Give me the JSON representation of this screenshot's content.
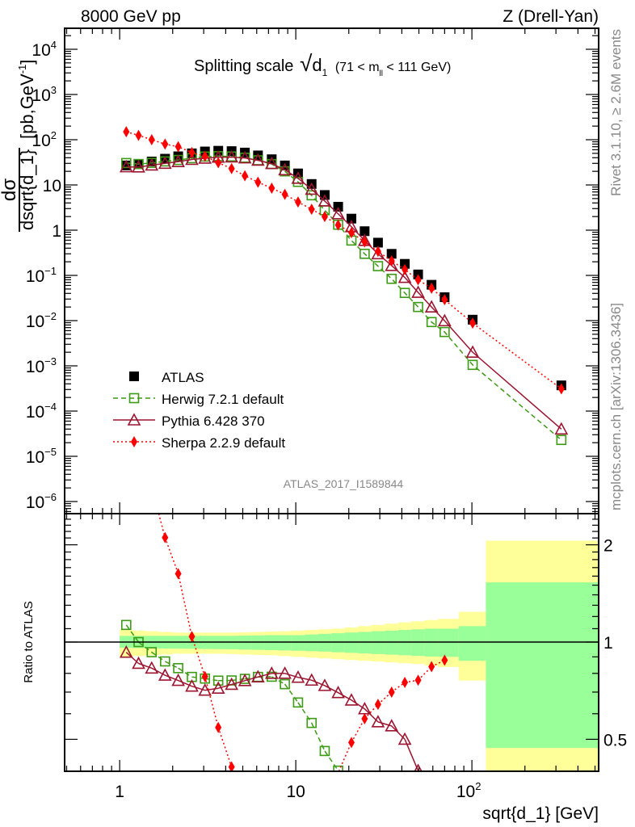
{
  "header": {
    "left": "8000 GeV pp",
    "right": "Z (Drell-Yan)"
  },
  "plot_title": {
    "main": "Splitting scale",
    "sqrt": "√",
    "var": "d",
    "var_sub": "1",
    "range_pre": "(71 < m",
    "range_sub": "ll",
    "range_post": " < 111 GeV)"
  },
  "ylabel": {
    "num": "dσ",
    "den": "dsqrt{d_1}",
    "units_pre": "[pb,GeV",
    "units_sup": "-1",
    "units_post": "]"
  },
  "ratio_ylabel": "Ratio to ATLAS",
  "xlabel": "sqrt{d_1} [GeV]",
  "side_text": {
    "rivet": "Rivet 3.1.10, ≥ 2.6M events",
    "mcplots": "mcplots.cern.ch [arXiv:1306.3436]"
  },
  "watermark": "ATLAS_2017_I1589844",
  "colors": {
    "atlas": "#000000",
    "herwig": "#3c9a14",
    "pythia": "#9b1430",
    "sherpa": "#ff0000",
    "band_inner": "#99ff99",
    "band_outer": "#ffff99"
  },
  "chart_data": {
    "type": "scatter",
    "title": "Splitting scale sqrt(d_1) (71 < m_ll < 111 GeV)",
    "xlabel": "sqrt{d_1} [GeV]",
    "ylabel": "dσ/dsqrt{d_1} [pb,GeV^-1]",
    "xscale": "log",
    "yscale": "log",
    "xlim": [
      0.49,
      520
    ],
    "ylim": [
      5e-07,
      30000
    ],
    "ratio_ylim": [
      0.4,
      2.5
    ],
    "x_ticks": [
      {
        "v": 1,
        "b": "1",
        "e": ""
      },
      {
        "v": 10,
        "b": "10",
        "e": ""
      },
      {
        "v": 100,
        "b": "10",
        "e": "2"
      }
    ],
    "y_ticks": [
      {
        "v": 10000,
        "b": "10",
        "e": "4"
      },
      {
        "v": 1000,
        "b": "10",
        "e": "3"
      },
      {
        "v": 100,
        "b": "10",
        "e": "2"
      },
      {
        "v": 10,
        "b": "10",
        "e": ""
      },
      {
        "v": 1,
        "b": "1",
        "e": ""
      },
      {
        "v": 0.1,
        "b": "10",
        "e": "−1"
      },
      {
        "v": 0.01,
        "b": "10",
        "e": "−2"
      },
      {
        "v": 0.001,
        "b": "10",
        "e": "−3"
      },
      {
        "v": 0.0001,
        "b": "10",
        "e": "−4"
      },
      {
        "v": 1e-05,
        "b": "10",
        "e": "−5"
      },
      {
        "v": 1e-06,
        "b": "10",
        "e": "−6"
      }
    ],
    "ratio_ticks": [
      {
        "v": 2,
        "label": "2"
      },
      {
        "v": 1,
        "label": "1"
      },
      {
        "v": 0.5,
        "label": "0.5"
      }
    ],
    "legend_position": "middle-left",
    "x": [
      1.09,
      1.28,
      1.52,
      1.81,
      2.15,
      2.57,
      3.05,
      3.63,
      4.32,
      5.14,
      6.1,
      7.3,
      8.67,
      10.3,
      12.3,
      14.6,
      17.4,
      20.7,
      24.6,
      29.3,
      35,
      41.6,
      49.5,
      59,
      70,
      101,
      322
    ],
    "series": [
      {
        "name": "ATLAS",
        "key": "atlas",
        "marker": "square-filled",
        "line": "none",
        "values": [
          27,
          29,
          33,
          38,
          43,
          50,
          55,
          57,
          56,
          52,
          45,
          37,
          27,
          18,
          10.5,
          6,
          3.3,
          1.8,
          0.95,
          0.53,
          0.3,
          0.18,
          0.105,
          0.062,
          0.033,
          0.0105,
          0.00037
        ]
      },
      {
        "name": "Herwig 7.2.1 default",
        "key": "herwig",
        "marker": "square-open",
        "line": "dashed",
        "values": [
          30.5,
          29,
          30.7,
          33.1,
          35.7,
          39,
          42.4,
          43.3,
          42.6,
          40,
          35.1,
          28.9,
          20,
          11.7,
          5.9,
          2.76,
          1.32,
          0.59,
          0.3,
          0.16,
          0.084,
          0.041,
          0.02,
          0.0093,
          0.0056,
          0.00105,
          2.3e-05
        ]
      },
      {
        "name": "Pythia 6.428 370",
        "key": "pythia",
        "marker": "triangle-open",
        "line": "solid",
        "values": [
          25.1,
          24.9,
          27.4,
          30,
          32.7,
          36.5,
          39,
          41,
          41.4,
          39.5,
          35.1,
          29.6,
          21.6,
          14,
          8,
          4.4,
          2.3,
          1.19,
          0.59,
          0.3,
          0.165,
          0.09,
          0.042,
          0.02,
          0.0099,
          0.002,
          4e-05
        ]
      },
      {
        "name": "Sherpa 2.2.9 default",
        "key": "sherpa",
        "marker": "diamond-filled",
        "line": "dotted",
        "values": [
          150,
          125,
          100,
          80,
          70,
          52,
          43,
          31,
          23,
          16,
          11.5,
          8.5,
          6.2,
          4.2,
          2.9,
          2.0,
          1.3,
          0.88,
          0.55,
          0.34,
          0.21,
          0.135,
          0.08,
          0.052,
          0.029,
          0.0088,
          0.00031
        ]
      }
    ],
    "ratio_band_inner": {
      "hi": [
        1.045,
        1.045,
        1.045,
        1.045,
        1.045,
        1.045,
        1.045,
        1.045,
        1.045,
        1.047,
        1.048,
        1.05,
        1.05,
        1.05,
        1.055,
        1.06,
        1.065,
        1.07,
        1.075,
        1.08,
        1.085,
        1.09,
        1.095,
        1.1,
        1.1,
        1.12,
        1.53
      ],
      "lo": [
        0.96,
        0.958,
        0.956,
        0.955,
        0.954,
        0.953,
        0.952,
        0.951,
        0.95,
        0.948,
        0.946,
        0.944,
        0.942,
        0.94,
        0.937,
        0.934,
        0.93,
        0.926,
        0.922,
        0.918,
        0.914,
        0.91,
        0.906,
        0.902,
        0.9,
        0.875,
        0.47
      ]
    },
    "ratio_band_outer": {
      "hi": [
        1.09,
        1.085,
        1.08,
        1.075,
        1.07,
        1.07,
        1.07,
        1.07,
        1.07,
        1.072,
        1.075,
        1.078,
        1.08,
        1.085,
        1.09,
        1.095,
        1.1,
        1.11,
        1.12,
        1.13,
        1.14,
        1.15,
        1.16,
        1.17,
        1.18,
        1.24,
        2.06
      ],
      "lo": [
        0.9,
        0.905,
        0.91,
        0.915,
        0.92,
        0.92,
        0.92,
        0.92,
        0.918,
        0.915,
        0.912,
        0.91,
        0.905,
        0.9,
        0.895,
        0.89,
        0.885,
        0.88,
        0.875,
        0.87,
        0.865,
        0.86,
        0.855,
        0.845,
        0.837,
        0.76,
        0.3
      ]
    }
  }
}
